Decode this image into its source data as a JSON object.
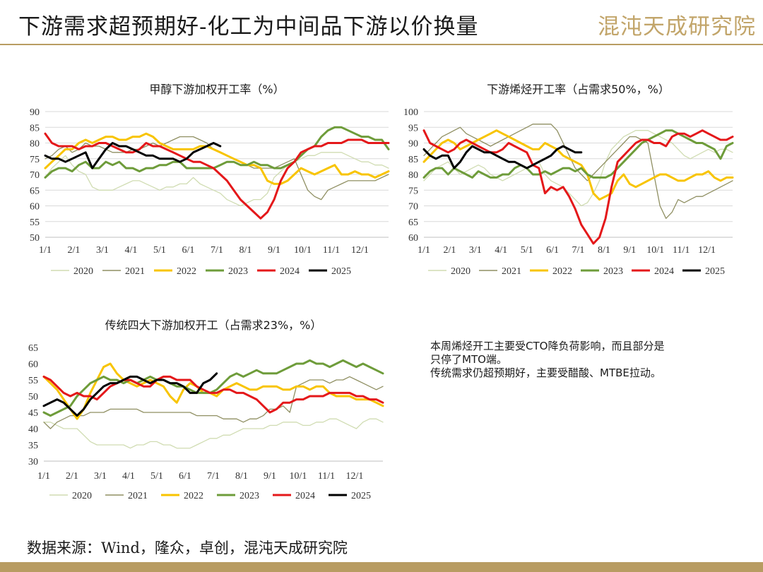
{
  "page": {
    "title": "下游需求超预期好-化工为中间品下游以价换量",
    "logo_text": "混沌天成研究院",
    "note_lines": [
      "本周烯烃开工主要受CTO降负荷影响，而且部分是",
      "只停了MTO端。",
      "传统需求仍超预期好，主要受醋酸、MTBE拉动。"
    ],
    "source": "数据来源：Wind，隆众，卓创，混沌天成研究院"
  },
  "colors": {
    "2020": "#d0dcb2",
    "2021": "#8f8f62",
    "2022": "#f8c400",
    "2023": "#6e9c3a",
    "2024": "#e4181a",
    "2025": "#000000",
    "accent": "#b89c62"
  },
  "chart_data": [
    {
      "type": "line",
      "title": "甲醇下游加权开工率（%）",
      "x_ticks": [
        "1/1",
        "2/1",
        "3/1",
        "4/1",
        "5/1",
        "6/1",
        "7/1",
        "8/1",
        "9/1",
        "10/1",
        "11/1",
        "12/1"
      ],
      "ylim": [
        50,
        90
      ],
      "y_ticks": [
        50,
        55,
        60,
        65,
        70,
        75,
        80,
        85,
        90
      ],
      "grid": true,
      "legend": "bottom",
      "series": [
        {
          "name": "2020",
          "week_start": 1,
          "values": [
            69,
            72,
            74,
            76,
            73,
            71,
            70,
            66,
            65,
            65,
            65,
            66,
            67,
            68,
            68,
            67,
            66,
            65,
            66,
            66,
            67,
            67,
            69,
            67,
            66,
            65,
            64,
            62,
            61,
            60,
            61,
            62,
            62,
            64,
            69,
            71,
            73,
            74,
            75,
            76,
            76,
            77,
            77,
            77,
            77,
            76,
            75,
            74,
            74,
            73,
            73,
            72
          ]
        },
        {
          "name": "2021",
          "week_start": 1,
          "values": [
            75,
            76,
            78,
            79,
            77,
            78,
            80,
            79,
            79,
            78,
            77,
            77,
            77,
            78,
            78,
            79,
            80,
            79,
            80,
            81,
            82,
            82,
            82,
            81,
            80,
            78,
            77,
            76,
            75,
            74,
            73,
            72,
            72,
            72,
            72,
            73,
            74,
            75,
            70,
            65,
            63,
            62,
            65,
            66,
            67,
            68,
            68,
            68,
            68,
            68,
            69,
            70
          ]
        },
        {
          "name": "2022",
          "week_start": 1,
          "values": [
            72,
            74,
            76,
            78,
            78,
            80,
            81,
            80,
            81,
            82,
            82,
            81,
            81,
            82,
            82,
            83,
            82,
            80,
            79,
            78,
            78,
            78,
            78,
            79,
            79,
            78,
            77,
            76,
            75,
            74,
            73,
            73,
            72,
            68,
            67,
            67,
            68,
            70,
            72,
            71,
            70,
            71,
            72,
            73,
            70,
            70,
            71,
            70,
            70,
            69,
            70,
            71
          ]
        },
        {
          "name": "2023",
          "week_start": 1,
          "values": [
            69,
            71,
            72,
            72,
            71,
            73,
            74,
            72,
            72,
            74,
            73,
            74,
            72,
            72,
            71,
            72,
            72,
            73,
            73,
            74,
            74,
            72,
            72,
            72,
            72,
            72,
            73,
            74,
            74,
            73,
            73,
            74,
            73,
            73,
            72,
            72,
            73,
            74,
            76,
            78,
            79,
            82,
            84,
            85,
            85,
            84,
            83,
            82,
            82,
            81,
            81,
            78
          ]
        },
        {
          "name": "2024",
          "week_start": 1,
          "values": [
            83,
            80,
            79,
            79,
            79,
            78,
            79,
            79,
            80,
            80,
            79,
            78,
            77,
            77,
            78,
            80,
            79,
            79,
            78,
            77,
            76,
            75,
            74,
            74,
            73,
            72,
            70,
            68,
            65,
            62,
            60,
            58,
            56,
            58,
            62,
            68,
            72,
            74,
            77,
            78,
            79,
            79,
            80,
            80,
            80,
            81,
            81,
            81,
            80,
            80,
            80,
            80
          ]
        },
        {
          "name": "2025",
          "week_start": 1,
          "values": [
            76,
            75,
            75,
            74,
            75,
            76,
            77,
            72,
            75,
            78,
            80,
            79,
            79,
            78,
            77,
            76,
            76,
            75,
            75,
            75,
            74,
            75,
            77,
            78,
            79,
            80,
            79
          ]
        }
      ]
    },
    {
      "type": "line",
      "title": "下游烯烃开工率（占需求50%，%）",
      "x_ticks": [
        "1/1",
        "2/1",
        "3/1",
        "4/1",
        "5/1",
        "6/1",
        "7/1",
        "8/1",
        "9/1",
        "10/1",
        "11/1",
        "12/1"
      ],
      "ylim": [
        60,
        100
      ],
      "y_ticks": [
        60,
        65,
        70,
        75,
        80,
        85,
        90,
        95,
        100
      ],
      "grid": true,
      "legend": "bottom",
      "series": [
        {
          "name": "2020",
          "week_start": 1,
          "values": [
            78,
            80,
            82,
            83,
            84,
            82,
            80,
            81,
            82,
            83,
            82,
            80,
            79,
            78,
            79,
            80,
            81,
            82,
            83,
            84,
            80,
            78,
            77,
            76,
            74,
            72,
            70,
            71,
            74,
            78,
            84,
            88,
            90,
            92,
            93,
            94,
            94,
            94,
            93,
            92,
            91,
            90,
            88,
            86,
            85,
            86,
            87,
            88,
            87,
            88,
            88,
            87
          ]
        },
        {
          "name": "2021",
          "week_start": 1,
          "values": [
            86,
            88,
            90,
            92,
            93,
            94,
            95,
            93,
            92,
            91,
            90,
            89,
            90,
            91,
            92,
            93,
            94,
            95,
            96,
            96,
            96,
            96,
            94,
            90,
            86,
            82,
            80,
            78,
            80,
            82,
            84,
            86,
            88,
            90,
            92,
            92,
            91,
            90,
            80,
            70,
            66,
            68,
            72,
            71,
            72,
            73,
            73,
            74,
            75,
            76,
            77,
            78
          ]
        },
        {
          "name": "2022",
          "week_start": 1,
          "values": [
            84,
            86,
            88,
            90,
            91,
            90,
            88,
            89,
            90,
            91,
            92,
            93,
            94,
            93,
            92,
            91,
            90,
            89,
            88,
            88,
            90,
            89,
            88,
            86,
            85,
            84,
            83,
            80,
            74,
            72,
            73,
            74,
            78,
            80,
            77,
            76,
            77,
            78,
            79,
            80,
            80,
            79,
            78,
            78,
            79,
            80,
            80,
            81,
            79,
            78,
            79,
            79
          ]
        },
        {
          "name": "2023",
          "week_start": 1,
          "values": [
            79,
            81,
            82,
            82,
            80,
            82,
            81,
            80,
            79,
            81,
            80,
            79,
            79,
            80,
            80,
            82,
            83,
            82,
            80,
            80,
            81,
            80,
            81,
            82,
            82,
            81,
            82,
            80,
            79,
            79,
            79,
            80,
            82,
            84,
            86,
            88,
            90,
            91,
            92,
            93,
            94,
            94,
            93,
            92,
            91,
            90,
            90,
            89,
            88,
            85,
            89,
            90
          ]
        },
        {
          "name": "2024",
          "week_start": 1,
          "values": [
            94,
            90,
            89,
            88,
            87,
            88,
            90,
            91,
            90,
            89,
            88,
            87,
            87,
            88,
            90,
            89,
            88,
            87,
            83,
            82,
            74,
            76,
            75,
            76,
            73,
            69,
            64,
            61,
            58,
            60,
            66,
            76,
            84,
            86,
            88,
            90,
            91,
            91,
            90,
            90,
            89,
            92,
            93,
            93,
            92,
            93,
            94,
            93,
            92,
            91,
            91,
            92
          ]
        },
        {
          "name": "2025",
          "week_start": 1,
          "values": [
            88,
            86,
            85,
            86,
            86,
            82,
            84,
            87,
            89,
            88,
            87,
            87,
            86,
            85,
            84,
            84,
            83,
            82,
            83,
            84,
            85,
            86,
            88,
            89,
            88,
            87,
            87
          ]
        }
      ]
    },
    {
      "type": "line",
      "title": "传统四大下游加权开工（占需求23%，%）",
      "x_ticks": [
        "1/1",
        "2/1",
        "3/1",
        "4/1",
        "5/1",
        "6/1",
        "7/1",
        "8/1",
        "9/1",
        "10/1",
        "11/1",
        "12/1"
      ],
      "ylim": [
        30,
        65
      ],
      "y_ticks": [
        30,
        35,
        40,
        45,
        50,
        55,
        60,
        65
      ],
      "grid": false,
      "legend": "bottom",
      "series": [
        {
          "name": "2020",
          "week_start": 1,
          "values": [
            42,
            42,
            41,
            40,
            40,
            40,
            38,
            36,
            35,
            35,
            35,
            35,
            35,
            34,
            35,
            35,
            36,
            36,
            35,
            35,
            34,
            34,
            34,
            35,
            36,
            37,
            37,
            38,
            38,
            39,
            40,
            40,
            40,
            40,
            41,
            41,
            42,
            42,
            42,
            41,
            41,
            42,
            42,
            43,
            43,
            42,
            41,
            40,
            42,
            43,
            43,
            42
          ]
        },
        {
          "name": "2021",
          "week_start": 1,
          "values": [
            42,
            40,
            42,
            43,
            44,
            44,
            44,
            45,
            45,
            45,
            46,
            46,
            46,
            46,
            46,
            45,
            45,
            45,
            45,
            45,
            45,
            45,
            45,
            44,
            44,
            44,
            44,
            43,
            43,
            43,
            42,
            43,
            43,
            44,
            46,
            46,
            47,
            45,
            53,
            54,
            55,
            55,
            55,
            54,
            55,
            55,
            56,
            55,
            54,
            53,
            52,
            53
          ]
        },
        {
          "name": "2022",
          "week_start": 1,
          "values": [
            56,
            54,
            52,
            49,
            46,
            43,
            46,
            51,
            55,
            59,
            60,
            57,
            55,
            54,
            53,
            54,
            55,
            54,
            53,
            50,
            48,
            52,
            54,
            53,
            51,
            51,
            50,
            52,
            53,
            54,
            53,
            52,
            52,
            53,
            53,
            53,
            52,
            52,
            53,
            53,
            52,
            53,
            53,
            51,
            50,
            50,
            50,
            49,
            49,
            49,
            48,
            47
          ]
        },
        {
          "name": "2023",
          "week_start": 1,
          "values": [
            45,
            44,
            45,
            46,
            47,
            50,
            52,
            54,
            55,
            56,
            55,
            55,
            54,
            55,
            54,
            55,
            56,
            55,
            55,
            54,
            53,
            53,
            52,
            51,
            51,
            51,
            52,
            54,
            56,
            57,
            56,
            57,
            58,
            57,
            57,
            57,
            58,
            59,
            60,
            60,
            61,
            60,
            60,
            59,
            60,
            61,
            60,
            59,
            60,
            59,
            58,
            57
          ]
        },
        {
          "name": "2024",
          "week_start": 1,
          "values": [
            56,
            55,
            53,
            51,
            50,
            51,
            50,
            50,
            49,
            51,
            53,
            54,
            55,
            55,
            54,
            53,
            53,
            55,
            56,
            56,
            55,
            55,
            55,
            53,
            52,
            51,
            51,
            52,
            52,
            51,
            51,
            50,
            49,
            47,
            45,
            46,
            48,
            48,
            49,
            49,
            50,
            50,
            50,
            51,
            51,
            51,
            51,
            50,
            50,
            49,
            49,
            48
          ]
        },
        {
          "name": "2025",
          "week_start": 1,
          "values": [
            47,
            48,
            49,
            48,
            46,
            44,
            46,
            49,
            51,
            53,
            54,
            54,
            55,
            56,
            56,
            55,
            54,
            55,
            55,
            54,
            54,
            53,
            51,
            51,
            54,
            55,
            57
          ]
        }
      ]
    }
  ]
}
